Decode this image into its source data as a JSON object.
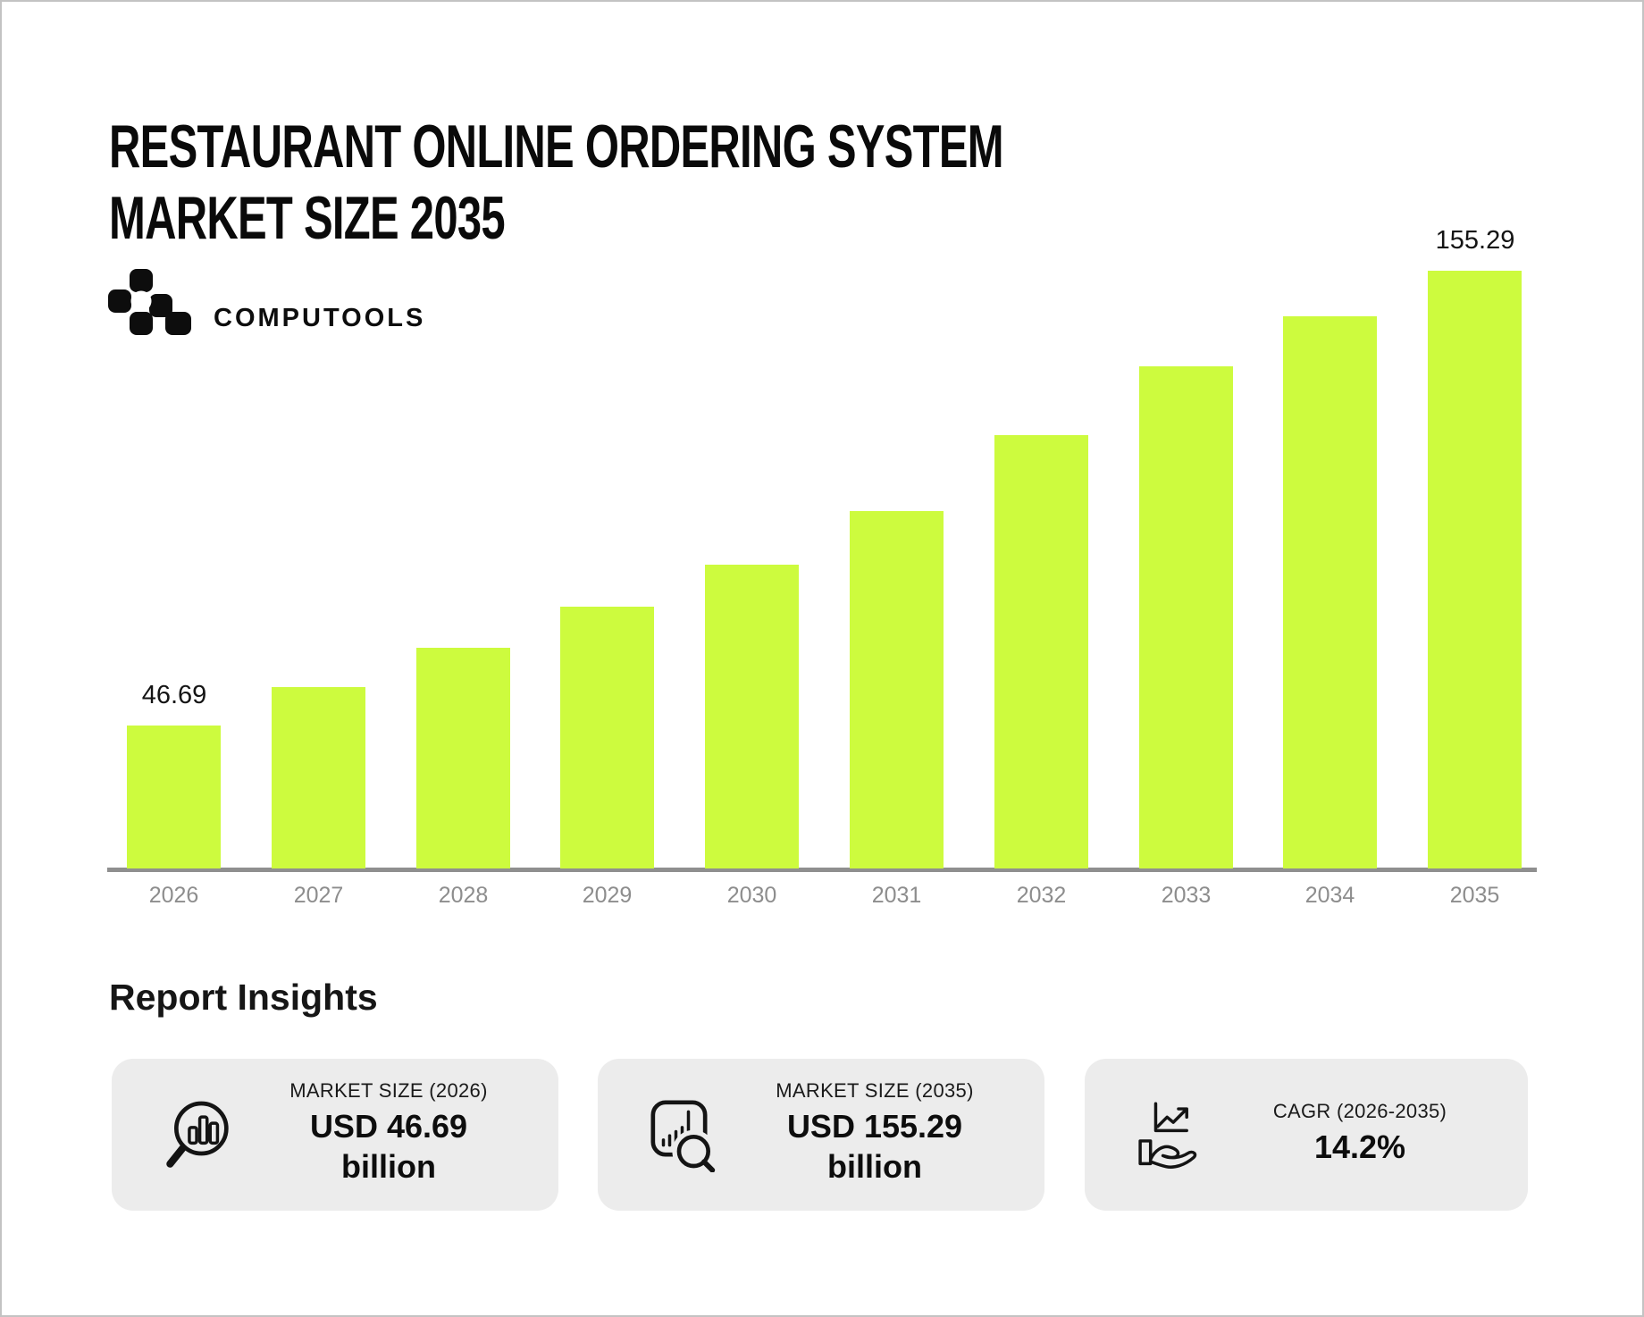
{
  "page": {
    "title": "RESTAURANT ONLINE ORDERING SYSTEM\nMARKET SIZE 2035",
    "brand": {
      "name": "COMPUTOOLS"
    },
    "section_heading": "Report Insights"
  },
  "chart_data": {
    "type": "bar",
    "title": "Restaurant Online Ordering System Market Size 2035",
    "unit": "USD billion",
    "categories": [
      "2026",
      "2027",
      "2028",
      "2029",
      "2030",
      "2031",
      "2032",
      "2033",
      "2034",
      "2035"
    ],
    "values": [
      46.69,
      55.9,
      65.3,
      75.1,
      85.1,
      97.9,
      116.0,
      132.5,
      144.4,
      155.29
    ],
    "value_labels": [
      "46.69",
      "",
      "",
      "",
      "",
      "",
      "",
      "",
      "",
      "155.29"
    ],
    "bar_color": "#CDFB3E",
    "axis_color": "#8F8F8F",
    "tick_label_color": "#8D8D8D",
    "grid": false,
    "legend": false,
    "baseline_value": 12.55,
    "xlabel": "",
    "ylabel": ""
  },
  "cards": [
    {
      "label": "MARKET SIZE (2026)",
      "value": "USD 46.69\nbillion",
      "icon": "magnifier-bar-chart-icon"
    },
    {
      "label": "MARKET SIZE (2035)",
      "value": "USD 155.29\nbillion",
      "icon": "chart-board-magnifier-icon"
    },
    {
      "label": "CAGR (2026-2035)",
      "value": "14.2%",
      "icon": "hand-growth-chart-icon"
    }
  ]
}
